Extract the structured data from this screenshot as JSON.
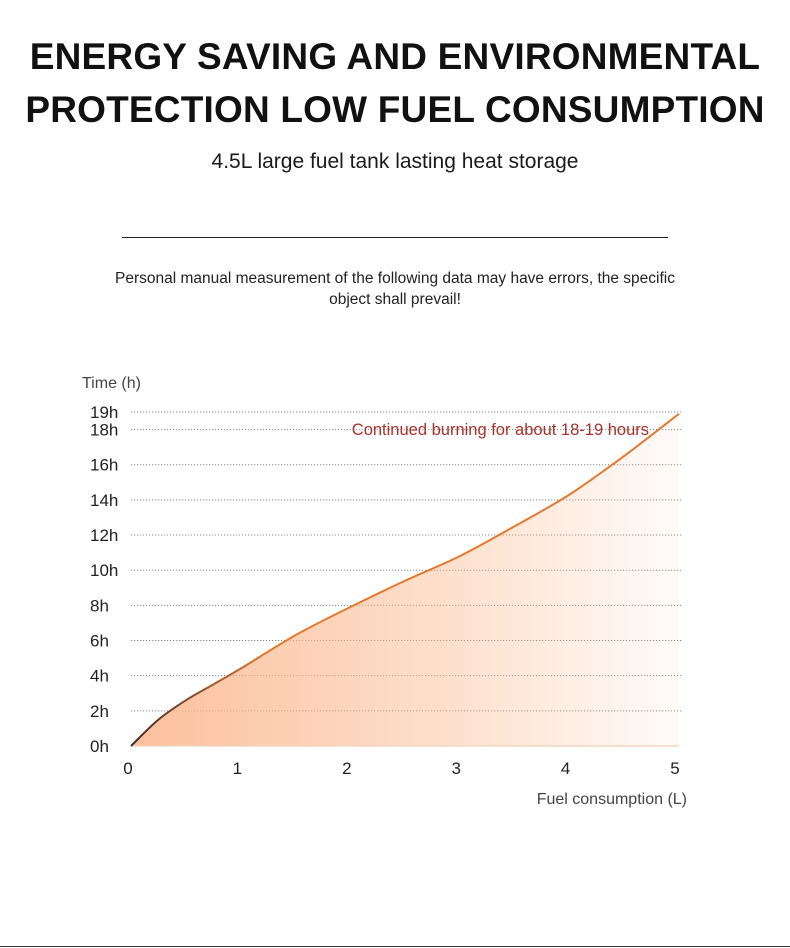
{
  "header": {
    "title_line1": "ENERGY SAVING AND ENVIRONMENTAL",
    "title_line2": "PROTECTION LOW FUEL CONSUMPTION",
    "subtitle": "4.5L large fuel tank lasting heat storage"
  },
  "disclaimer": {
    "line1": "Personal manual measurement of the following data may have errors, the specific",
    "line2": "object shall prevail!"
  },
  "colors": {
    "line": "#e07a2e",
    "line_start": "#3a2a2a",
    "fill": "#fbb58a",
    "grid": "#888888",
    "annotation": "#a8312d"
  },
  "chart_data": {
    "type": "area",
    "ylabel": "Time (h)",
    "xlabel": "Fuel consumption (L)",
    "x_ticks": [
      "0",
      "1",
      "2",
      "3",
      "4",
      "5"
    ],
    "y_ticks": [
      "0h",
      "2h",
      "4h",
      "6h",
      "8h",
      "10h",
      "12h",
      "14h",
      "16h",
      "18h",
      "19h"
    ],
    "y_tick_values": [
      0,
      2,
      4,
      6,
      8,
      10,
      12,
      14,
      16,
      18,
      19
    ],
    "xlim": [
      0,
      5
    ],
    "ylim": [
      0,
      19
    ],
    "grid": true,
    "annotation": "Continued burning for about 18-19 hours",
    "x": [
      0,
      0.25,
      0.5,
      0.75,
      1,
      1.5,
      2,
      2.5,
      3,
      3.5,
      4,
      4.5,
      5
    ],
    "y": [
      0,
      1.5,
      2.6,
      3.5,
      4.4,
      6.3,
      7.9,
      9.4,
      10.8,
      12.5,
      14.3,
      16.5,
      18.9
    ]
  }
}
